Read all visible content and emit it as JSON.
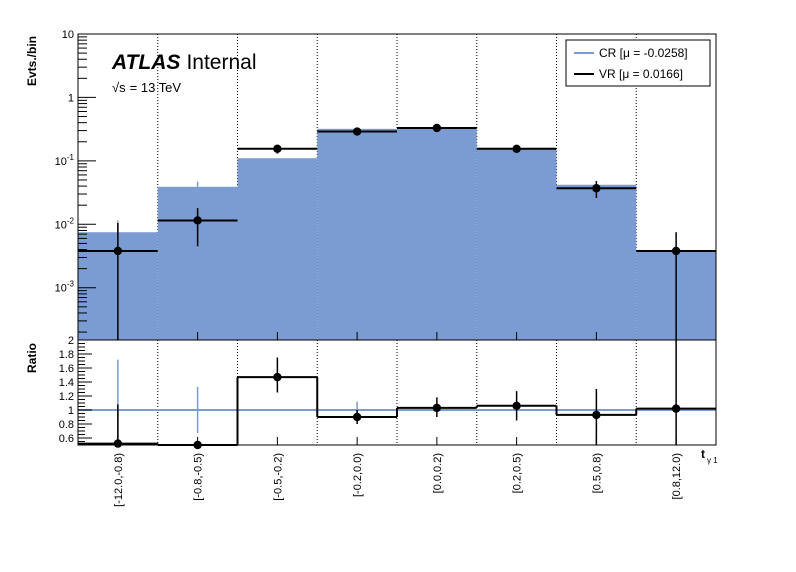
{
  "labels": {
    "atlas": "ATLAS",
    "internal": "Internal",
    "energy_sqrt": "√s",
    "energy_rest": "= 13 TeV",
    "xlabel_main": "t",
    "xlabel_sub": "γ 1"
  },
  "colors": {
    "cr_fill": "#7b9bd3",
    "cr_line": "#7b9bd3",
    "vr_line": "#000000"
  },
  "chart_data": [
    {
      "type": "bar",
      "panel": "main",
      "yscale": "log",
      "ylabel": "Evts./bin",
      "ylim": [
        0.00015,
        10
      ],
      "yticks": [
        {
          "v": 0.001,
          "b": "10",
          "e": "-3"
        },
        {
          "v": 0.01,
          "b": "10",
          "e": "-2"
        },
        {
          "v": 0.1,
          "b": "10",
          "e": "-1"
        },
        {
          "v": 1,
          "b": "1",
          "e": ""
        },
        {
          "v": 10,
          "b": "10",
          "e": ""
        }
      ],
      "categories": [
        "[-12.0,-0.8)",
        "[-0.8,-0.5)",
        "[-0.5,-0.2)",
        "[-0.2,0.0)",
        "[0.0,0.2)",
        "[0.2,0.5)",
        "[0.5,0.8)",
        "[0.8,12.0)"
      ],
      "grid": "vertical",
      "legend": "top-right",
      "series": [
        {
          "name": "CR [μ = -0.0258]",
          "style": "filled-histogram",
          "values": [
            0.0075,
            0.039,
            0.11,
            0.32,
            0.32,
            0.16,
            0.042,
            0.0038
          ],
          "err_low": [
            0.0,
            0.0,
            0.0,
            0.0,
            0.0,
            0.0,
            0.0,
            0.0
          ],
          "err_high": [
            0.0115,
            0.047,
            0.0,
            0.0,
            0.0,
            0.0,
            0.0,
            0.0
          ]
        },
        {
          "name": "VR [μ = 0.0166]",
          "style": "points-with-step",
          "values": [
            0.0038,
            0.0115,
            0.155,
            0.29,
            0.33,
            0.155,
            0.037,
            0.0038
          ],
          "err_low": [
            0.00015,
            0.0045,
            0.13,
            0.27,
            0.31,
            0.14,
            0.026,
            0.00015
          ],
          "err_high": [
            0.0105,
            0.018,
            0.18,
            0.31,
            0.35,
            0.17,
            0.048,
            0.0075
          ]
        }
      ]
    },
    {
      "type": "bar",
      "panel": "ratio",
      "ylabel": "Ratio",
      "ylim": [
        0.5,
        2.0
      ],
      "yticks": [
        0.6,
        0.8,
        1,
        1.2,
        1.4,
        1.6,
        1.8,
        2
      ],
      "categories": [
        "[-12.0,-0.8)",
        "[-0.8,-0.5)",
        "[-0.5,-0.2)",
        "[-0.2,0.0)",
        "[0.0,0.2)",
        "[0.2,0.5)",
        "[0.5,0.8)",
        "[0.8,12.0)"
      ],
      "reference_line": 1.0,
      "series": [
        {
          "name": "CR",
          "err_low": [
            0.5,
            0.67,
            1.0,
            0.94,
            1.0,
            1.0,
            1.0,
            1.0
          ],
          "err_high": [
            1.72,
            1.33,
            1.0,
            1.12,
            1.0,
            1.0,
            1.0,
            1.0
          ]
        },
        {
          "name": "VR",
          "values": [
            0.52,
            0.5,
            1.47,
            0.9,
            1.03,
            1.06,
            0.93,
            1.02
          ],
          "err_low": [
            0.5,
            0.5,
            1.25,
            0.8,
            0.9,
            0.85,
            0.5,
            0.5
          ],
          "err_high": [
            1.08,
            0.5,
            1.75,
            1.0,
            1.18,
            1.27,
            1.3,
            2.0
          ]
        }
      ]
    }
  ]
}
